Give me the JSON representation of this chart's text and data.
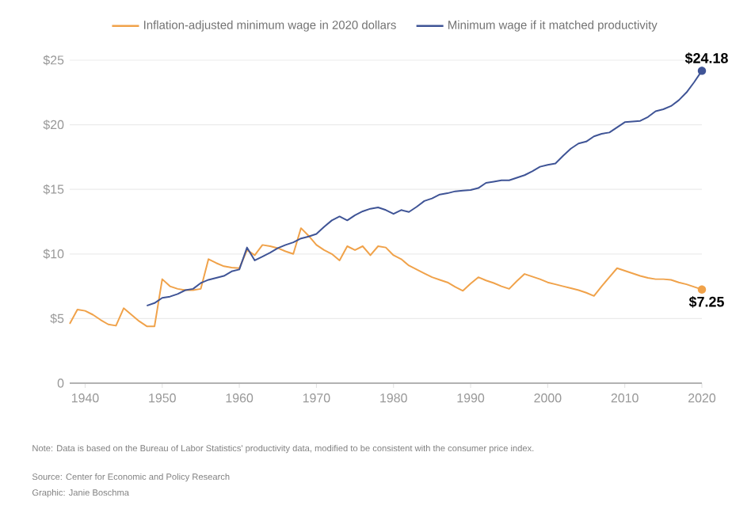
{
  "chart_data": {
    "type": "line",
    "x": [
      1938,
      1939,
      1940,
      1941,
      1942,
      1943,
      1944,
      1945,
      1946,
      1947,
      1948,
      1949,
      1950,
      1951,
      1952,
      1953,
      1954,
      1955,
      1956,
      1957,
      1958,
      1959,
      1960,
      1961,
      1962,
      1963,
      1964,
      1965,
      1966,
      1967,
      1968,
      1969,
      1970,
      1971,
      1972,
      1973,
      1974,
      1975,
      1976,
      1977,
      1978,
      1979,
      1980,
      1981,
      1982,
      1983,
      1984,
      1985,
      1986,
      1987,
      1988,
      1989,
      1990,
      1991,
      1992,
      1993,
      1994,
      1995,
      1996,
      1997,
      1998,
      1999,
      2000,
      2001,
      2002,
      2003,
      2004,
      2005,
      2006,
      2007,
      2008,
      2009,
      2010,
      2011,
      2012,
      2013,
      2014,
      2015,
      2016,
      2017,
      2018,
      2019,
      2020
    ],
    "series": [
      {
        "name": "Inflation-adjusted minimum wage in 2020 dollars",
        "color": "#f0a24a",
        "values": [
          4.6,
          5.7,
          5.6,
          5.3,
          4.9,
          4.55,
          4.45,
          5.8,
          5.3,
          4.8,
          4.4,
          4.4,
          8.05,
          7.5,
          7.3,
          7.2,
          7.2,
          7.3,
          9.6,
          9.3,
          9.05,
          8.95,
          8.9,
          10.3,
          9.9,
          10.7,
          10.6,
          10.45,
          10.2,
          10.0,
          12.0,
          11.4,
          10.7,
          10.3,
          10.0,
          9.5,
          10.6,
          10.3,
          10.6,
          9.9,
          10.6,
          10.5,
          9.9,
          9.6,
          9.1,
          8.8,
          8.5,
          8.2,
          8.0,
          7.8,
          7.45,
          7.15,
          7.7,
          8.2,
          7.95,
          7.75,
          7.5,
          7.3,
          7.9,
          8.45,
          8.25,
          8.05,
          7.8,
          7.65,
          7.5,
          7.35,
          7.2,
          7.0,
          6.75,
          7.5,
          8.2,
          8.9,
          8.7,
          8.5,
          8.3,
          8.15,
          8.05,
          8.05,
          8.0,
          7.8,
          7.65,
          7.45,
          7.25
        ]
      },
      {
        "name": "Minimum wage if it matched productivity",
        "color": "#3f5496",
        "values": [
          null,
          null,
          null,
          null,
          null,
          null,
          null,
          null,
          null,
          null,
          6.0,
          6.2,
          6.6,
          6.7,
          6.9,
          7.2,
          7.3,
          7.75,
          8.0,
          8.15,
          8.3,
          8.65,
          8.8,
          10.5,
          9.5,
          9.8,
          10.1,
          10.45,
          10.7,
          10.9,
          11.2,
          11.35,
          11.55,
          12.1,
          12.6,
          12.9,
          12.6,
          13.0,
          13.3,
          13.5,
          13.6,
          13.4,
          13.1,
          13.4,
          13.25,
          13.65,
          14.1,
          14.3,
          14.6,
          14.7,
          14.85,
          14.9,
          14.95,
          15.1,
          15.5,
          15.6,
          15.7,
          15.7,
          15.9,
          16.1,
          16.4,
          16.75,
          16.9,
          17.0,
          17.6,
          18.15,
          18.55,
          18.7,
          19.1,
          19.3,
          19.4,
          19.8,
          20.2,
          20.25,
          20.3,
          20.6,
          21.05,
          21.2,
          21.45,
          21.9,
          22.5,
          23.3,
          24.18
        ]
      }
    ],
    "xlim": [
      1938,
      2020
    ],
    "xticks": [
      1940,
      1950,
      1960,
      1970,
      1980,
      1990,
      2000,
      2010,
      2020
    ],
    "ylim": [
      0,
      25
    ],
    "yticks": [
      0,
      {
        "value": 5,
        "label": "$5"
      },
      {
        "value": 10,
        "label": "$10"
      },
      {
        "value": 15,
        "label": "$15"
      },
      {
        "value": 20,
        "label": "$20"
      },
      {
        "value": 25,
        "label": "$25"
      }
    ],
    "grid": "y",
    "legend": "top",
    "annotations": [
      {
        "text": "$24.18",
        "x": 2020,
        "y": 24.18
      },
      {
        "text": "$7.25",
        "x": 2020,
        "y": 7.25
      },
      "Note: Data is based on the Bureau of Labor Statistics' productivity data, modified to be consistent with the consumer price index.",
      "Source: Center for Economic and Policy Research",
      "Graphic: Janie Boschma"
    ]
  }
}
